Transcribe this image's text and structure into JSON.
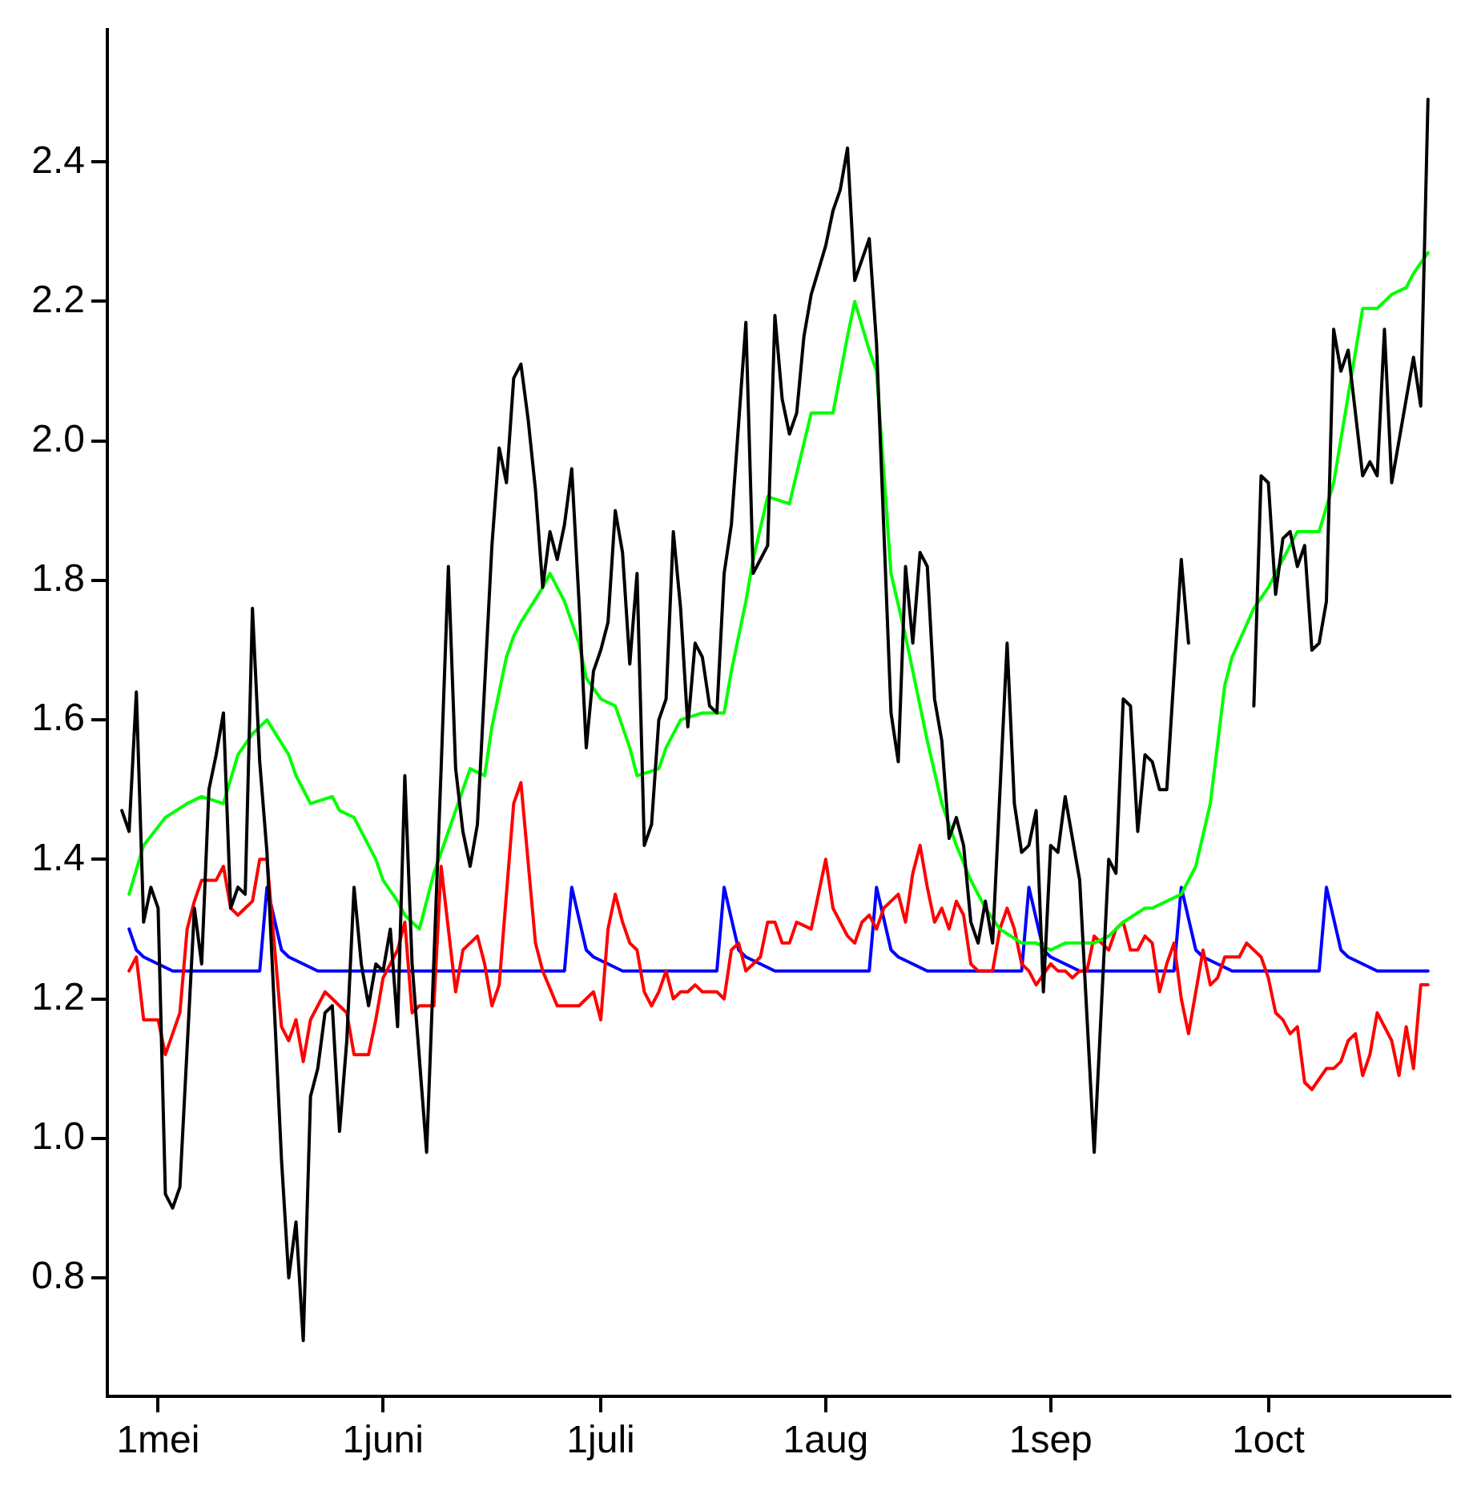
{
  "chart_data": {
    "type": "line",
    "xlim": [
      "--04-24",
      "--10-26"
    ],
    "ylim": [
      0.63,
      2.59
    ],
    "xticks": [
      {
        "value": "--05-01",
        "label": "1mei"
      },
      {
        "value": "--06-01",
        "label": "1juni"
      },
      {
        "value": "--07-01",
        "label": "1juli"
      },
      {
        "value": "--08-01",
        "label": "1aug"
      },
      {
        "value": "--09-01",
        "label": "1sep"
      },
      {
        "value": "--10-01",
        "label": "1oct"
      }
    ],
    "yticks": [
      0.8,
      {
        "value": 1,
        "label": "1.0"
      },
      1.2,
      1.4,
      1.6,
      1.8,
      {
        "value": 2,
        "label": "2.0"
      },
      2.2,
      2.4
    ],
    "grid": false,
    "legend": false,
    "marker": "none",
    "line_style": "solid",
    "series": [
      {
        "color": "#000000",
        "x": [
          "--04-26",
          "--04-27",
          "--04-28",
          "--04-29",
          "--04-30",
          "--05-01",
          "--05-02",
          "--05-03",
          "--05-04",
          "--05-06",
          "--05-07",
          "--05-08",
          "--05-09",
          "--05-10",
          "--05-11",
          "--05-12",
          "--05-13",
          "--05-14",
          "--05-15",
          "--05-16",
          "--05-18",
          "--05-19",
          "--05-20",
          "--05-21",
          "--05-22",
          "--05-23",
          "--05-24",
          "--05-25",
          "--05-26",
          "--05-27",
          "--05-28",
          "--05-29",
          "--05-30",
          "--05-31",
          "--06-01",
          "--06-02",
          "--06-03",
          "--06-04",
          "--06-05",
          "--06-07",
          "--06-09",
          "--06-10",
          "--06-11",
          "--06-12",
          "--06-13",
          "--06-14",
          "--06-16",
          "--06-17",
          "--06-18",
          "--06-19",
          "--06-20",
          "--06-21",
          "--06-22",
          "--06-23",
          "--06-24",
          "--06-25",
          "--06-26",
          "--06-27",
          "--06-28",
          "--06-29",
          "--06-30",
          "--07-01",
          "--07-02",
          "--07-03",
          "--07-04",
          "--07-05",
          "--07-06",
          "--07-07",
          "--07-08",
          "--07-09",
          "--07-10",
          "--07-11",
          "--07-12",
          "--07-13",
          "--07-14",
          "--07-15",
          "--07-16",
          "--07-17",
          "--07-18",
          "--07-19",
          "--07-21",
          "--07-22",
          "--07-23",
          "--07-24",
          "--07-25",
          "--07-26",
          "--07-27",
          "--07-28",
          "--07-29",
          "--07-30",
          "--08-01",
          "--08-02",
          "--08-03",
          "--08-04",
          "--08-05",
          "--08-07",
          "--08-08",
          "--08-10",
          "--08-11",
          "--08-12",
          "--08-13",
          "--08-14",
          "--08-15",
          "--08-16",
          "--08-17",
          "--08-18",
          "--08-19",
          "--08-20",
          "--08-21",
          "--08-22",
          "--08-23",
          "--08-24",
          "--08-26",
          "--08-27",
          "--08-28",
          "--08-29",
          "--08-30",
          "--08-31",
          "--09-01",
          "--09-02",
          "--09-03",
          "--09-05",
          "--09-07",
          "--09-09",
          "--09-10",
          "--09-11",
          "--09-12",
          "--09-13",
          "--09-14",
          "--09-15",
          "--09-16",
          "--09-17",
          "--09-19",
          "--09-20",
          "--09-24",
          "--09-29",
          "--09-30",
          "--10-01",
          "--10-02",
          "--10-03",
          "--10-04",
          "--10-05",
          "--10-06",
          "--10-07",
          "--10-08",
          "--10-09",
          "--10-10",
          "--10-11",
          "--10-12",
          "--10-14",
          "--10-15",
          "--10-16",
          "--10-17",
          "--10-18",
          "--10-21",
          "--10-22",
          "--10-23"
        ],
        "values": [
          1.47,
          1.44,
          1.64,
          1.31,
          1.36,
          1.33,
          0.92,
          0.9,
          0.93,
          1.33,
          1.25,
          1.5,
          1.55,
          1.61,
          1.33,
          1.36,
          1.35,
          1.76,
          1.54,
          1.41,
          0.97,
          0.8,
          0.88,
          0.71,
          1.06,
          1.1,
          1.18,
          1.19,
          1.01,
          1.14,
          1.36,
          1.25,
          1.19,
          1.25,
          1.24,
          1.3,
          1.16,
          1.52,
          1.25,
          0.98,
          1.53,
          1.82,
          1.53,
          1.44,
          1.39,
          1.45,
          1.85,
          1.99,
          1.94,
          2.09,
          2.11,
          2.03,
          1.93,
          1.79,
          1.87,
          1.83,
          1.88,
          1.96,
          1.77,
          1.56,
          1.67,
          1.7,
          1.74,
          1.9,
          1.84,
          1.68,
          1.81,
          1.42,
          1.45,
          1.6,
          1.63,
          1.87,
          1.76,
          1.59,
          1.71,
          1.69,
          1.62,
          1.61,
          1.81,
          1.88,
          2.17,
          1.81,
          1.83,
          1.85,
          2.18,
          2.06,
          2.01,
          2.04,
          2.15,
          2.21,
          2.28,
          2.33,
          2.36,
          2.42,
          2.23,
          2.29,
          2.14,
          1.61,
          1.54,
          1.82,
          1.71,
          1.84,
          1.82,
          1.63,
          1.57,
          1.43,
          1.46,
          1.42,
          1.31,
          1.28,
          1.34,
          1.28,
          1.71,
          1.48,
          1.41,
          1.42,
          1.47,
          1.21,
          1.42,
          1.41,
          1.49,
          1.37,
          0.98,
          1.4,
          1.38,
          1.63,
          1.62,
          1.44,
          1.55,
          1.54,
          1.5,
          1.5,
          1.83,
          1.71,
          null,
          1.62,
          1.95,
          1.94,
          1.78,
          1.86,
          1.87,
          1.82,
          1.85,
          1.7,
          1.71,
          1.77,
          2.16,
          2.1,
          2.13,
          1.95,
          1.97,
          1.95,
          2.16,
          1.94,
          2.12,
          2.05,
          2.49
        ]
      },
      {
        "color": "#00ff00",
        "x": [
          "--04-27",
          "--04-29",
          "--05-02",
          "--05-05",
          "--05-07",
          "--05-10",
          "--05-12",
          "--05-14",
          "--05-16",
          "--05-19",
          "--05-20",
          "--05-22",
          "--05-25",
          "--05-26",
          "--05-28",
          "--05-30",
          "--05-31",
          "--06-01",
          "--06-03",
          "--06-04",
          "--06-06",
          "--06-08",
          "--06-10",
          "--06-12",
          "--06-13",
          "--06-15",
          "--06-16",
          "--06-18",
          "--06-19",
          "--06-20",
          "--06-23",
          "--06-24",
          "--06-26",
          "--06-27",
          "--06-28",
          "--06-29",
          "--07-01",
          "--07-03",
          "--07-05",
          "--07-06",
          "--07-09",
          "--07-10",
          "--07-12",
          "--07-15",
          "--07-18",
          "--07-19",
          "--07-21",
          "--07-22",
          "--07-24",
          "--07-27",
          "--07-30",
          "--08-02",
          "--08-04",
          "--08-05",
          "--08-07",
          "--08-08",
          "--08-10",
          "--08-12",
          "--08-15",
          "--08-17",
          "--08-19",
          "--08-21",
          "--08-23",
          "--08-25",
          "--08-28",
          "--08-30",
          "--09-01",
          "--09-03",
          "--09-07",
          "--09-09",
          "--09-11",
          "--09-14",
          "--09-15",
          "--09-19",
          "--09-21",
          "--09-23",
          "--09-25",
          "--09-26",
          "--09-29",
          "--10-01",
          "--10-05",
          "--10-07",
          "--10-08",
          "--10-10",
          "--10-14",
          "--10-16",
          "--10-18",
          "--10-20",
          "--10-21",
          "--10-23"
        ],
        "values": [
          1.35,
          1.42,
          1.46,
          1.48,
          1.49,
          1.48,
          1.55,
          1.58,
          1.6,
          1.55,
          1.52,
          1.48,
          1.49,
          1.47,
          1.46,
          1.42,
          1.4,
          1.37,
          1.34,
          1.32,
          1.3,
          1.38,
          1.44,
          1.5,
          1.53,
          1.52,
          1.59,
          1.69,
          1.72,
          1.74,
          1.79,
          1.81,
          1.77,
          1.74,
          1.71,
          1.66,
          1.63,
          1.62,
          1.56,
          1.52,
          1.53,
          1.56,
          1.6,
          1.61,
          1.61,
          1.67,
          1.77,
          1.83,
          1.92,
          1.91,
          2.04,
          2.04,
          2.15,
          2.2,
          2.13,
          2.1,
          1.81,
          1.72,
          1.57,
          1.48,
          1.42,
          1.37,
          1.33,
          1.3,
          1.28,
          1.28,
          1.27,
          1.28,
          1.28,
          1.29,
          1.31,
          1.33,
          1.33,
          1.35,
          1.39,
          1.48,
          1.65,
          1.69,
          1.76,
          1.79,
          1.87,
          1.87,
          1.87,
          1.94,
          2.19,
          2.19,
          2.21,
          2.22,
          2.24,
          2.27
        ]
      },
      {
        "color": "#ff0000",
        "x": [
          "--04-27",
          "--04-28",
          "--04-29",
          "--05-01",
          "--05-02",
          "--05-04",
          "--05-05",
          "--05-06",
          "--05-07",
          "--05-09",
          "--05-10",
          "--05-11",
          "--05-12",
          "--05-13",
          "--05-14",
          "--05-15",
          "--05-16",
          "--05-17",
          "--05-18",
          "--05-19",
          "--05-20",
          "--05-21",
          "--05-22",
          "--05-23",
          "--05-24",
          "--05-25",
          "--05-26",
          "--05-27",
          "--05-28",
          "--05-29",
          "--05-30",
          "--05-31",
          "--06-01",
          "--06-03",
          "--06-04",
          "--06-05",
          "--06-06",
          "--06-08",
          "--06-09",
          "--06-10",
          "--06-11",
          "--06-12",
          "--06-13",
          "--06-14",
          "--06-15",
          "--06-16",
          "--06-17",
          "--06-19",
          "--06-20",
          "--06-22",
          "--06-23",
          "--06-25",
          "--06-26",
          "--06-27",
          "--06-28",
          "--06-29",
          "--06-30",
          "--07-01",
          "--07-02",
          "--07-03",
          "--07-04",
          "--07-05",
          "--07-06",
          "--07-07",
          "--07-08",
          "--07-09",
          "--07-10",
          "--07-11",
          "--07-12",
          "--07-13",
          "--07-14",
          "--07-15",
          "--07-16",
          "--07-17",
          "--07-18",
          "--07-19",
          "--07-20",
          "--07-21",
          "--07-22",
          "--07-23",
          "--07-24",
          "--07-25",
          "--07-26",
          "--07-27",
          "--07-28",
          "--07-30",
          "--07-31",
          "--08-01",
          "--08-02",
          "--08-04",
          "--08-05",
          "--08-06",
          "--08-07",
          "--08-08",
          "--08-09",
          "--08-10",
          "--08-11",
          "--08-12",
          "--08-13",
          "--08-14",
          "--08-15",
          "--08-16",
          "--08-17",
          "--08-18",
          "--08-19",
          "--08-20",
          "--08-21",
          "--08-22",
          "--08-23",
          "--08-24",
          "--08-25",
          "--08-26",
          "--08-27",
          "--08-28",
          "--08-29",
          "--08-30",
          "--09-01",
          "--09-02",
          "--09-03",
          "--09-04",
          "--09-05",
          "--09-06",
          "--09-07",
          "--09-09",
          "--09-10",
          "--09-11",
          "--09-12",
          "--09-13",
          "--09-14",
          "--09-15",
          "--09-16",
          "--09-17",
          "--09-18",
          "--09-19",
          "--09-20",
          "--09-22",
          "--09-23",
          "--09-24",
          "--09-25",
          "--09-27",
          "--09-28",
          "--09-30",
          "--10-01",
          "--10-02",
          "--10-03",
          "--10-04",
          "--10-05",
          "--10-06",
          "--10-07",
          "--10-09",
          "--10-10",
          "--10-11",
          "--10-12",
          "--10-13",
          "--10-14",
          "--10-15",
          "--10-16",
          "--10-18",
          "--10-19",
          "--10-20",
          "--10-21",
          "--10-22",
          "--10-23"
        ],
        "values": [
          1.24,
          1.26,
          1.17,
          1.17,
          1.12,
          1.18,
          1.3,
          1.34,
          1.37,
          1.37,
          1.39,
          1.33,
          1.32,
          1.33,
          1.34,
          1.4,
          1.4,
          1.28,
          1.16,
          1.14,
          1.17,
          1.11,
          1.17,
          1.19,
          1.21,
          1.2,
          1.19,
          1.18,
          1.12,
          1.12,
          1.12,
          1.17,
          1.23,
          1.27,
          1.31,
          1.18,
          1.19,
          1.19,
          1.39,
          1.3,
          1.21,
          1.27,
          1.28,
          1.29,
          1.25,
          1.19,
          1.22,
          1.48,
          1.51,
          1.28,
          1.24,
          1.19,
          1.19,
          1.19,
          1.19,
          1.2,
          1.21,
          1.17,
          1.3,
          1.35,
          1.31,
          1.28,
          1.27,
          1.21,
          1.19,
          1.21,
          1.24,
          1.2,
          1.21,
          1.21,
          1.22,
          1.21,
          1.21,
          1.21,
          1.2,
          1.27,
          1.28,
          1.24,
          1.25,
          1.26,
          1.31,
          1.31,
          1.28,
          1.28,
          1.31,
          1.3,
          1.35,
          1.4,
          1.33,
          1.29,
          1.28,
          1.31,
          1.32,
          1.3,
          1.33,
          1.34,
          1.35,
          1.31,
          1.38,
          1.42,
          1.36,
          1.31,
          1.33,
          1.3,
          1.34,
          1.32,
          1.25,
          1.24,
          1.24,
          1.24,
          1.3,
          1.33,
          1.3,
          1.25,
          1.24,
          1.22,
          1.25,
          1.24,
          1.24,
          1.23,
          1.24,
          1.24,
          1.29,
          1.27,
          1.3,
          1.31,
          1.27,
          1.27,
          1.29,
          1.28,
          1.21,
          1.25,
          1.28,
          1.2,
          1.15,
          1.27,
          1.22,
          1.23,
          1.26,
          1.26,
          1.28,
          1.26,
          1.23,
          1.18,
          1.17,
          1.15,
          1.16,
          1.08,
          1.07,
          1.1,
          1.1,
          1.11,
          1.14,
          1.15,
          1.09,
          1.12,
          1.18,
          1.14,
          1.09,
          1.16,
          1.1,
          1.22,
          1.22
        ]
      },
      {
        "color": "#0000ff",
        "x": [
          "--04-27",
          "--04-28",
          "--04-29",
          "--05-01",
          "--05-03",
          "--05-15",
          "--05-16",
          "--05-18",
          "--05-19",
          "--05-21",
          "--05-23",
          "--06-26",
          "--06-27",
          "--06-29",
          "--06-30",
          "--07-02",
          "--07-04",
          "--07-17",
          "--07-18",
          "--07-20",
          "--07-21",
          "--07-23",
          "--07-25",
          "--08-07",
          "--08-08",
          "--08-10",
          "--08-11",
          "--08-13",
          "--08-15",
          "--08-28",
          "--08-29",
          "--08-31",
          "--09-01",
          "--09-03",
          "--09-05",
          "--09-18",
          "--09-19",
          "--09-21",
          "--09-22",
          "--09-24",
          "--09-26",
          "--10-08",
          "--10-09",
          "--10-11",
          "--10-12",
          "--10-14",
          "--10-16",
          "--10-23"
        ],
        "values": [
          1.3,
          1.27,
          1.26,
          1.25,
          1.24,
          1.24,
          1.36,
          1.27,
          1.26,
          1.25,
          1.24,
          1.24,
          1.36,
          1.27,
          1.26,
          1.25,
          1.24,
          1.24,
          1.36,
          1.27,
          1.26,
          1.25,
          1.24,
          1.24,
          1.36,
          1.27,
          1.26,
          1.25,
          1.24,
          1.24,
          1.36,
          1.27,
          1.26,
          1.25,
          1.24,
          1.24,
          1.36,
          1.27,
          1.26,
          1.25,
          1.24,
          1.24,
          1.36,
          1.27,
          1.26,
          1.25,
          1.24,
          1.24
        ]
      }
    ]
  }
}
